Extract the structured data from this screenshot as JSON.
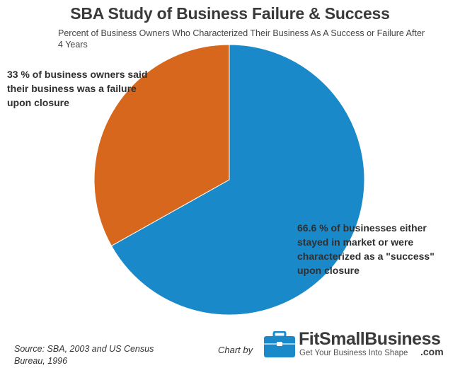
{
  "chart_data": {
    "type": "pie",
    "title": "SBA Study of Business Failure & Success",
    "subtitle": "Percent of Business Owners Who Characterized Their Business As A Success or Failure After 4 Years",
    "slices": [
      {
        "label": "66.6 % of businesses either stayed in market or were characterized as a \"success\" upon closure",
        "value": 66.6,
        "color": "#1a89c9"
      },
      {
        "label": "33 % of business owners said their business was a failure upon closure",
        "value": 33,
        "color": "#d7671c"
      }
    ],
    "source": "Source: SBA, 2003 and US Census Bureau, 1996"
  },
  "credit": {
    "chart_by": "Chart by",
    "brand_name": "FitSmallBusiness",
    "brand_tld": ".com",
    "brand_tagline": "Get Your Business Into Shape",
    "brand_color": "#1a89c9",
    "icon": "briefcase-icon"
  }
}
